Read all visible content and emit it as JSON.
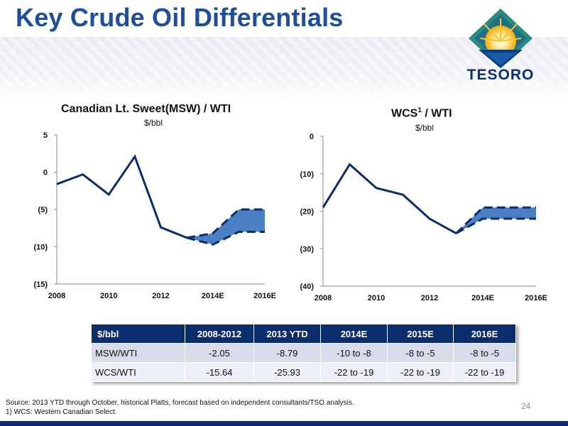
{
  "header": {
    "title": "Key Crude Oil Differentials",
    "logo_text": "TESORO"
  },
  "chart_data": [
    {
      "type": "line",
      "title": "Canadian Lt. Sweet(MSW) / WTI",
      "subtitle": "$/bbl",
      "x_ticks": [
        "2008",
        "2010",
        "2012",
        "2014E",
        "2016E"
      ],
      "y_ticks": [
        "5",
        "0",
        "(5)",
        "(10)",
        "(15)"
      ],
      "ylim": [
        -15,
        5
      ],
      "xlim": [
        2008,
        2016
      ],
      "series": [
        {
          "x": [
            2008,
            2009,
            2010,
            2011,
            2012,
            2013
          ],
          "y": [
            -1.6,
            -0.3,
            -3.0,
            2.1,
            -7.4,
            -8.8
          ]
        }
      ],
      "forecast_range": {
        "x": [
          2013,
          2014,
          2015,
          2016
        ],
        "low": [
          -8.8,
          -9.7,
          -8.0,
          -8.0
        ],
        "high": [
          -8.8,
          -8.2,
          -5.0,
          -5.0
        ]
      },
      "grid": false,
      "legend": "none"
    },
    {
      "type": "line",
      "title": "WCS",
      "title_sup": "1",
      "title_rest": " / WTI",
      "subtitle": "$/bbl",
      "x_ticks": [
        "2008",
        "2010",
        "2012",
        "2014E",
        "2016E"
      ],
      "y_ticks": [
        "0",
        "(10)",
        "(20)",
        "(30)",
        "(40)"
      ],
      "ylim": [
        -40,
        0
      ],
      "xlim": [
        2008,
        2016
      ],
      "series": [
        {
          "x": [
            2008,
            2009,
            2010,
            2011,
            2012,
            2013
          ],
          "y": [
            -19.0,
            -7.5,
            -13.8,
            -15.6,
            -22.0,
            -25.9
          ]
        }
      ],
      "forecast_range": {
        "x": [
          2013,
          2014,
          2015,
          2016
        ],
        "low": [
          -25.9,
          -22.0,
          -22.0,
          -22.0
        ],
        "high": [
          -25.9,
          -19.0,
          -19.0,
          -19.0
        ]
      },
      "grid": false,
      "legend": "none"
    }
  ],
  "table": {
    "headers": [
      "$/bbl",
      "2008-2012",
      "2013 YTD",
      "2014E",
      "2015E",
      "2016E"
    ],
    "rows": [
      [
        "MSW/WTI",
        "-2.05",
        "-8.79",
        "-10 to -8",
        "-8 to -5",
        "-8 to -5"
      ],
      [
        "WCS/WTI",
        "-15.64",
        "-25.93",
        "-22 to -19",
        "-22 to -19",
        "-22 to -19"
      ]
    ]
  },
  "footnotes": {
    "source": "Source: 2013 YTD through October, historical Platts, forecast based on independent consultants/TSO analysis.",
    "note1": "1)  WCS: Western Canadian Select."
  },
  "page_number": "24",
  "colors": {
    "title": "#1f4e9a",
    "line": "#0c2d6b",
    "band": "#4a7fc4",
    "table_header": "#0c2d6b",
    "row1": "#d6dcea",
    "row2": "#eceff5"
  }
}
